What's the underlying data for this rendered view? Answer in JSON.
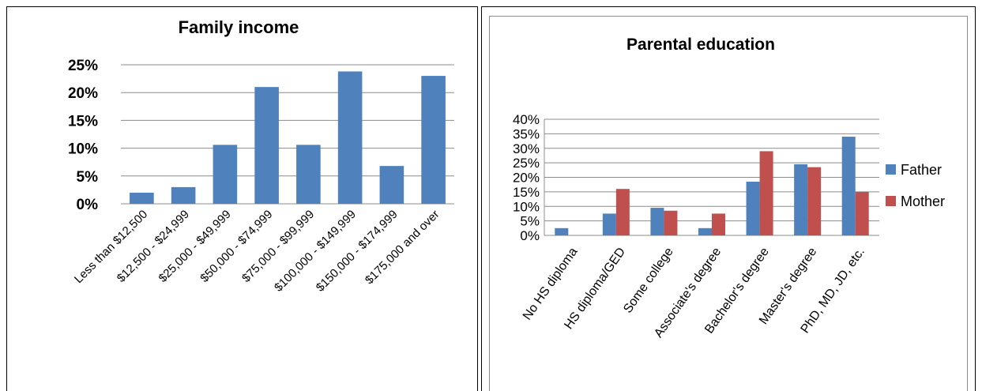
{
  "chart_data": [
    {
      "type": "bar",
      "title": "Family income",
      "categories": [
        "Less than $12,500",
        "$12,500 - $24,999",
        "$25,000 - $49,999",
        "$50,000 - $74,999",
        "$75,000 - $99,999",
        "$100,000 - $149,999",
        "$150,000 - $174,999",
        "$175,000 and over"
      ],
      "series": [
        {
          "name": "",
          "color": "#4f81bd",
          "values": [
            2.0,
            3.0,
            10.6,
            21.0,
            10.6,
            23.8,
            6.8,
            23.0
          ]
        }
      ],
      "yticks": [
        "0%",
        "5%",
        "10%",
        "15%",
        "20%",
        "25%"
      ],
      "ylim": [
        0,
        25
      ],
      "grid": true,
      "legend": "none"
    },
    {
      "type": "bar",
      "title": "Parental education",
      "categories": [
        "No HS diploma",
        "HS diploma/GED",
        "Some college",
        "Associate's degree",
        "Bachelor's degree",
        "Master's degree",
        "PhD, MD, JD, etc."
      ],
      "series": [
        {
          "name": "Father",
          "color": "#4f81bd",
          "values": [
            2.5,
            7.5,
            9.5,
            2.5,
            18.5,
            24.5,
            34.0
          ]
        },
        {
          "name": "Mother",
          "color": "#c0504d",
          "values": [
            0,
            16.0,
            8.5,
            7.5,
            29.0,
            23.5,
            15.0
          ]
        }
      ],
      "yticks": [
        "0%",
        "5%",
        "10%",
        "15%",
        "20%",
        "25%",
        "30%",
        "35%",
        "40%"
      ],
      "ylim": [
        0,
        40
      ],
      "grid": true,
      "legend": "right"
    }
  ]
}
